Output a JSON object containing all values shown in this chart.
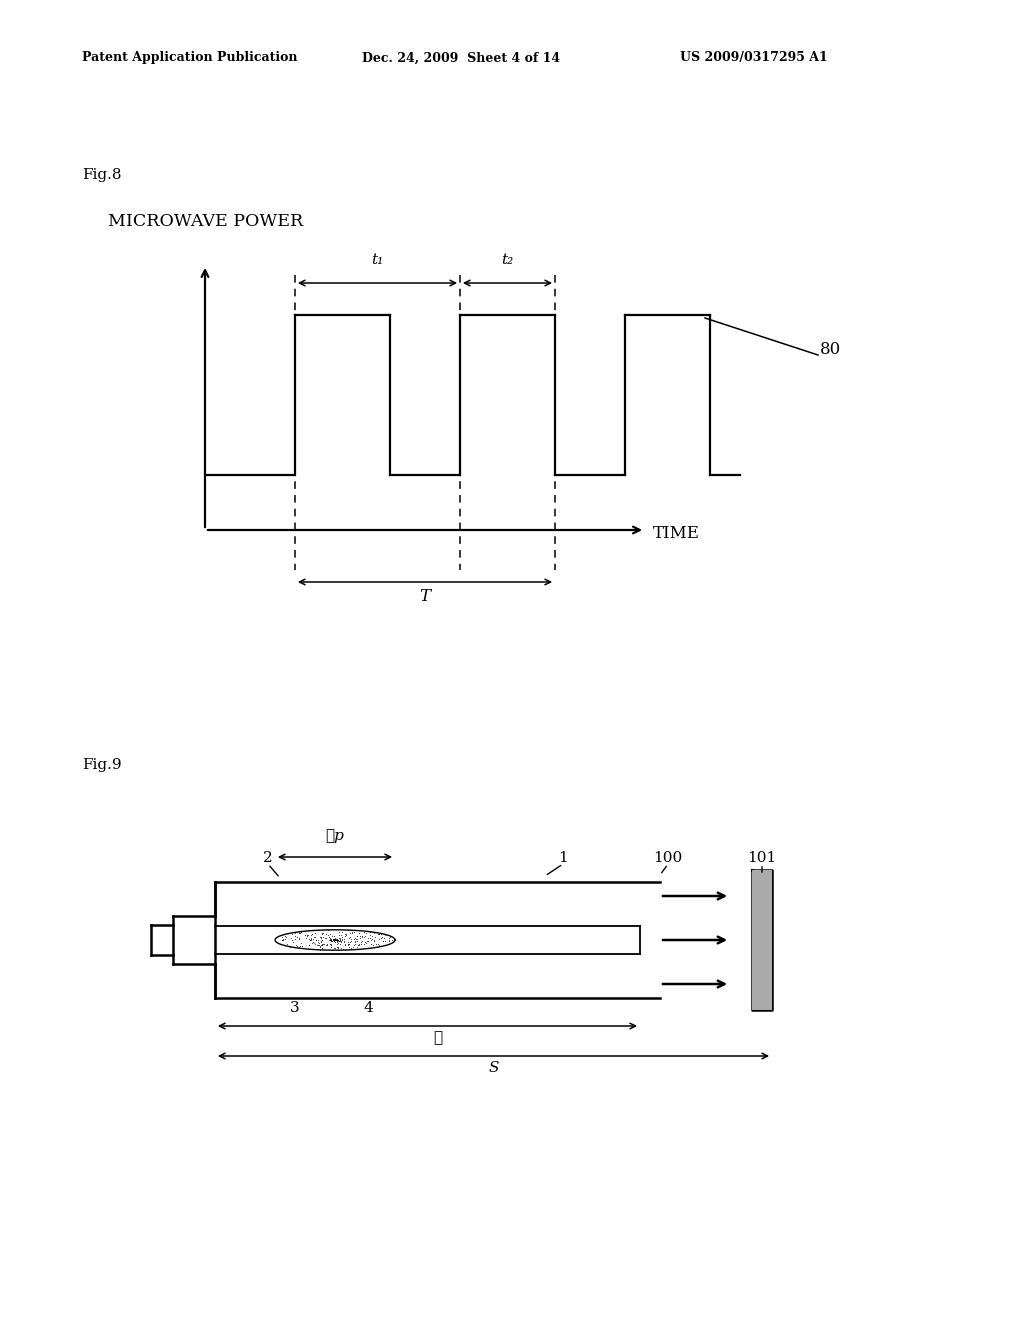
{
  "bg_color": "#ffffff",
  "header_left": "Patent Application Publication",
  "header_mid": "Dec. 24, 2009  Sheet 4 of 14",
  "header_right": "US 2009/0317295 A1",
  "fig8_label": "Fig.8",
  "fig8_title": "MICROWAVE POWER",
  "fig8_time_label": "TIME",
  "fig8_T_label": "T",
  "fig8_t1_label": "t₁",
  "fig8_t2_label": "t₂",
  "fig8_80_label": "80",
  "fig9_label": "Fig.9",
  "label_1": "1",
  "label_2": "2",
  "label_3": "3",
  "label_4": "4",
  "label_100": "100",
  "label_101": "101",
  "label_lp": "ℓp",
  "label_ell": "ℓ",
  "label_S": "S"
}
